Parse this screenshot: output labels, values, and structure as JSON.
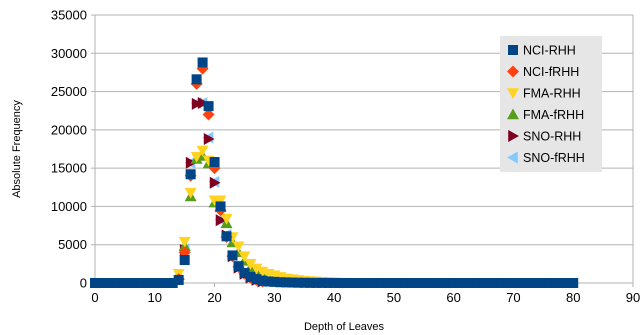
{
  "chart_data": {
    "type": "scatter",
    "title": "",
    "xlabel": "Depth of Leaves",
    "ylabel": "Absolute Frequency",
    "xlim": [
      0,
      90
    ],
    "ylim": [
      0,
      35000
    ],
    "xticks": [
      0,
      10,
      20,
      30,
      40,
      50,
      60,
      70,
      80,
      90
    ],
    "yticks": [
      0,
      5000,
      10000,
      15000,
      20000,
      25000,
      30000,
      35000
    ],
    "grid": "horizontal",
    "legend_position": "top-right",
    "series": [
      {
        "name": "NCI-RHH",
        "marker": "square",
        "color": "#004586",
        "x": [
          0,
          1,
          2,
          3,
          4,
          5,
          6,
          7,
          8,
          9,
          10,
          11,
          12,
          13,
          14,
          15,
          16,
          17,
          18,
          19,
          20,
          21,
          22,
          23,
          24,
          25,
          26,
          27,
          28,
          29,
          30,
          31,
          32,
          33,
          34,
          35,
          36,
          37,
          38,
          39,
          40,
          41,
          42,
          43,
          44,
          45,
          46,
          47,
          48,
          49,
          50,
          51,
          52,
          53,
          54,
          55,
          56,
          57,
          58,
          59,
          60,
          61,
          62,
          63,
          64,
          65,
          66,
          67,
          68,
          69,
          70,
          71,
          72,
          73,
          74,
          75,
          76,
          77,
          78,
          79,
          80
        ],
        "y": [
          0,
          0,
          0,
          0,
          0,
          0,
          0,
          0,
          0,
          0,
          0,
          0,
          0,
          0,
          400,
          3000,
          14200,
          26600,
          28800,
          23100,
          15800,
          10000,
          6100,
          3600,
          2200,
          1300,
          800,
          500,
          300,
          200,
          150,
          100,
          80,
          60,
          40,
          30,
          20,
          15,
          10,
          8,
          5,
          0,
          0,
          0,
          0,
          0,
          0,
          0,
          0,
          0,
          0,
          0,
          0,
          0,
          0,
          0,
          0,
          0,
          0,
          0,
          0,
          0,
          0,
          0,
          0,
          0,
          0,
          0,
          0,
          0,
          0,
          0,
          0,
          0,
          0,
          0,
          0,
          0,
          0,
          0,
          0
        ]
      },
      {
        "name": "NCI-fRHH",
        "marker": "diamond",
        "color": "#ff420e",
        "x": [
          14,
          15,
          16,
          17,
          18,
          19,
          20,
          21,
          22,
          23,
          24,
          25,
          26,
          27,
          28
        ],
        "y": [
          500,
          4000,
          14000,
          26000,
          28000,
          22000,
          15000,
          9500,
          6000,
          3500,
          2100,
          1200,
          700,
          400,
          200
        ]
      },
      {
        "name": "FMA-RHH",
        "marker": "triangle-down",
        "color": "#ffd320",
        "x": [
          14,
          15,
          16,
          17,
          18,
          19,
          20,
          21,
          22,
          23,
          24,
          25,
          26,
          27,
          28,
          29,
          30,
          31,
          32,
          33,
          34,
          35,
          36,
          37,
          38,
          39,
          40,
          42,
          45
        ],
        "y": [
          1200,
          5400,
          11800,
          16500,
          17300,
          16000,
          10800,
          10800,
          8400,
          6000,
          4800,
          3500,
          2500,
          1900,
          1500,
          1200,
          1000,
          800,
          600,
          500,
          400,
          300,
          250,
          200,
          150,
          100,
          80,
          50,
          20
        ]
      },
      {
        "name": "FMA-fRHH",
        "marker": "triangle-up",
        "color": "#579d1c",
        "x": [
          14,
          15,
          16,
          17,
          18,
          19,
          20,
          21,
          22,
          23,
          24,
          25,
          26,
          27,
          28,
          29,
          30,
          31,
          32
        ],
        "y": [
          1000,
          4800,
          11300,
          16200,
          16600,
          15600,
          10500,
          9900,
          7800,
          5300,
          4000,
          2900,
          2000,
          1400,
          1000,
          700,
          500,
          300,
          200
        ]
      },
      {
        "name": "SNO-RHH",
        "marker": "triangle-right",
        "color": "#7e0021",
        "x": [
          15,
          16,
          17,
          18,
          19,
          20,
          21,
          22,
          23,
          24,
          25,
          26,
          27,
          28
        ],
        "y": [
          4300,
          15700,
          23400,
          23500,
          18800,
          13100,
          8200,
          6200,
          3500,
          2000,
          1200,
          700,
          400,
          200
        ]
      },
      {
        "name": "SNO-fRHH",
        "marker": "triangle-left",
        "color": "#83caff",
        "x": [
          15,
          16,
          17,
          18,
          19,
          20,
          21,
          22,
          23,
          24,
          25,
          26,
          27,
          28
        ],
        "y": [
          4400,
          15700,
          23500,
          23500,
          19000,
          13200,
          8300,
          6300,
          3600,
          2100,
          1300,
          700,
          400,
          200
        ]
      }
    ]
  }
}
